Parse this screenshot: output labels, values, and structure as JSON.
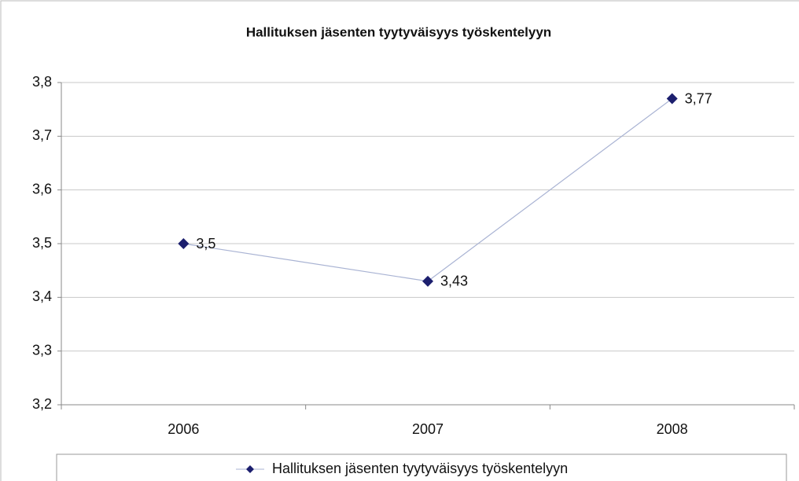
{
  "chart_data": {
    "type": "line",
    "title": "Hallituksen jäsenten tyytyväisyys työskentelyyn",
    "categories": [
      "2006",
      "2007",
      "2008"
    ],
    "series": [
      {
        "name": "Hallituksen jäsenten tyytyväisyys työskentelyyn",
        "color": "#1c1f6e",
        "line_color": "#a9b3d3",
        "values": [
          3.5,
          3.43,
          3.77
        ],
        "value_labels": [
          "3,5",
          "3,43",
          "3,77"
        ]
      }
    ],
    "ylim": [
      3.2,
      3.8
    ],
    "yticks": [
      {
        "value": 3.2,
        "label": "3,2"
      },
      {
        "value": 3.3,
        "label": "3,3"
      },
      {
        "value": 3.4,
        "label": "3,4"
      },
      {
        "value": 3.5,
        "label": "3,5"
      },
      {
        "value": 3.6,
        "label": "3,6"
      },
      {
        "value": 3.7,
        "label": "3,7"
      },
      {
        "value": 3.8,
        "label": "3,8"
      }
    ],
    "grid": true,
    "legend": "bottom"
  }
}
